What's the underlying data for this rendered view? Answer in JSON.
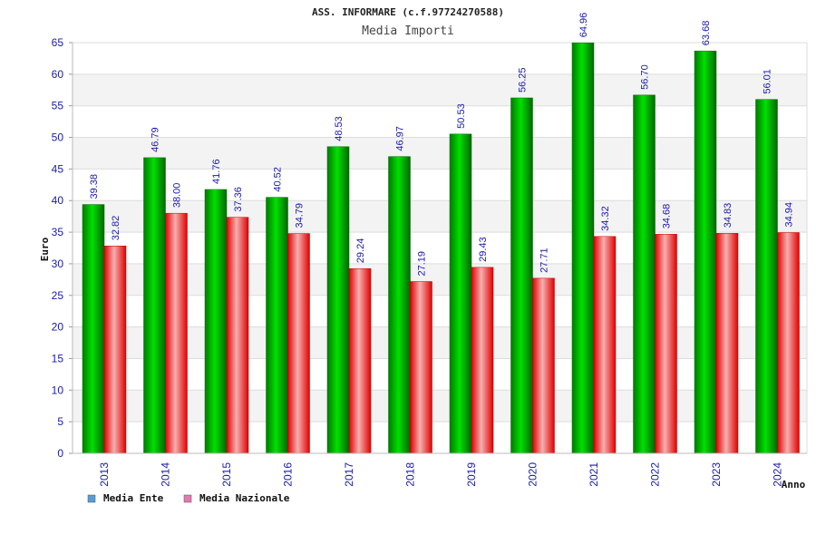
{
  "chart_data": {
    "type": "bar",
    "title": "ASS. INFORMARE (c.f.97724270588)",
    "subtitle": "Media Importi",
    "xlabel": "Anno",
    "ylabel": "Euro",
    "ylim": [
      0,
      65
    ],
    "yticks": [
      0,
      5,
      10,
      15,
      20,
      25,
      30,
      35,
      40,
      45,
      50,
      55,
      60,
      65
    ],
    "grid": true,
    "legend_position": "bottom-left",
    "categories": [
      "2013",
      "2014",
      "2015",
      "2016",
      "2017",
      "2018",
      "2019",
      "2020",
      "2021",
      "2022",
      "2023",
      "2024"
    ],
    "series": [
      {
        "name": "Media Ente",
        "color": "#00b400",
        "legend_color": "#5b9bd5",
        "values": [
          39.38,
          46.79,
          41.76,
          40.52,
          48.53,
          46.97,
          50.53,
          56.25,
          64.96,
          56.7,
          63.68,
          56.01
        ]
      },
      {
        "name": "Media Nazionale",
        "color": "#e60000",
        "legend_color": "#e07ab0",
        "values": [
          32.82,
          38.0,
          37.36,
          34.79,
          29.24,
          27.19,
          29.43,
          27.71,
          34.32,
          34.68,
          34.83,
          34.94
        ]
      }
    ]
  }
}
